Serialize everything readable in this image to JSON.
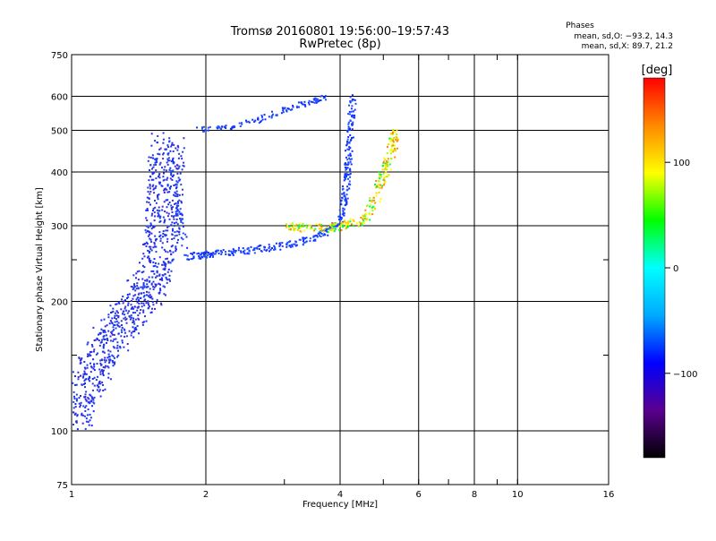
{
  "chart_data": {
    "type": "scatter",
    "title": "Tromsø 20160801 19:56:00–19:57:43",
    "subtitle": "RwPretec (8p)",
    "xlabel": "Frequency [MHz]",
    "ylabel": "Stationary phase Virtual Height [km]",
    "x_scale": "log",
    "y_scale": "log",
    "xlim": [
      1,
      16
    ],
    "ylim": [
      75,
      750
    ],
    "x_ticks": [
      1,
      2,
      4,
      6,
      8,
      10,
      16
    ],
    "x_tick_labels": [
      "1",
      "2",
      "4",
      "6",
      "8",
      "10",
      "16"
    ],
    "y_ticks": [
      75,
      100,
      200,
      300,
      400,
      500,
      600,
      750
    ],
    "y_tick_labels": [
      "75",
      "100",
      "200",
      "300",
      "400",
      "500",
      "600",
      "750"
    ],
    "x_minor_grid": [
      3,
      5,
      7,
      9
    ],
    "y_minor_grid": [
      150,
      250
    ],
    "grid": true,
    "stats": {
      "heading": "Phases",
      "line1": "mean, sd,O: −93.2, 14.3",
      "line2": "mean, sd,X:  89.7, 21.2"
    },
    "colorbar": {
      "label": "[deg]",
      "range": [
        -180,
        180
      ],
      "ticks": [
        100,
        0,
        -100
      ],
      "tick_labels": [
        "100",
        "0",
        "−100"
      ],
      "colors": [
        "#000000",
        "#5a0090",
        "#0000ff",
        "#00aaff",
        "#00ffff",
        "#00ff00",
        "#ffff00",
        "#ff8800",
        "#ff0000"
      ]
    },
    "o_trace_color": "#1030ff",
    "x_trace_colors": [
      "#ffff00",
      "#ffd000",
      "#ff8800",
      "#00ff40",
      "#a0ff00"
    ],
    "o_trace_points": [
      {
        "f": 1.0,
        "h": 105
      },
      {
        "f": 1.05,
        "h": 120
      },
      {
        "f": 1.12,
        "h": 140
      },
      {
        "f": 1.2,
        "h": 160
      },
      {
        "f": 1.3,
        "h": 180
      },
      {
        "f": 1.4,
        "h": 200
      },
      {
        "f": 1.5,
        "h": 220
      },
      {
        "f": 1.55,
        "h": 260
      },
      {
        "f": 1.6,
        "h": 300
      },
      {
        "f": 1.6,
        "h": 350
      },
      {
        "f": 1.62,
        "h": 400
      },
      {
        "f": 1.64,
        "h": 470
      },
      {
        "f": 1.8,
        "h": 255
      },
      {
        "f": 2.0,
        "h": 258
      },
      {
        "f": 2.3,
        "h": 262
      },
      {
        "f": 2.7,
        "h": 267
      },
      {
        "f": 3.2,
        "h": 275
      },
      {
        "f": 3.7,
        "h": 290
      },
      {
        "f": 4.0,
        "h": 310
      },
      {
        "f": 4.1,
        "h": 360
      },
      {
        "f": 4.15,
        "h": 420
      },
      {
        "f": 4.2,
        "h": 500
      },
      {
        "f": 4.25,
        "h": 600
      },
      {
        "f": 1.9,
        "h": 505
      },
      {
        "f": 2.2,
        "h": 510
      },
      {
        "f": 2.6,
        "h": 530
      },
      {
        "f": 3.0,
        "h": 560
      },
      {
        "f": 3.4,
        "h": 585
      },
      {
        "f": 3.7,
        "h": 600
      }
    ],
    "x_trace_points": [
      {
        "f": 3.0,
        "h": 300
      },
      {
        "f": 3.5,
        "h": 297
      },
      {
        "f": 4.0,
        "h": 300
      },
      {
        "f": 4.5,
        "h": 310
      },
      {
        "f": 4.8,
        "h": 350
      },
      {
        "f": 5.0,
        "h": 400
      },
      {
        "f": 5.2,
        "h": 450
      },
      {
        "f": 5.3,
        "h": 500
      }
    ]
  }
}
